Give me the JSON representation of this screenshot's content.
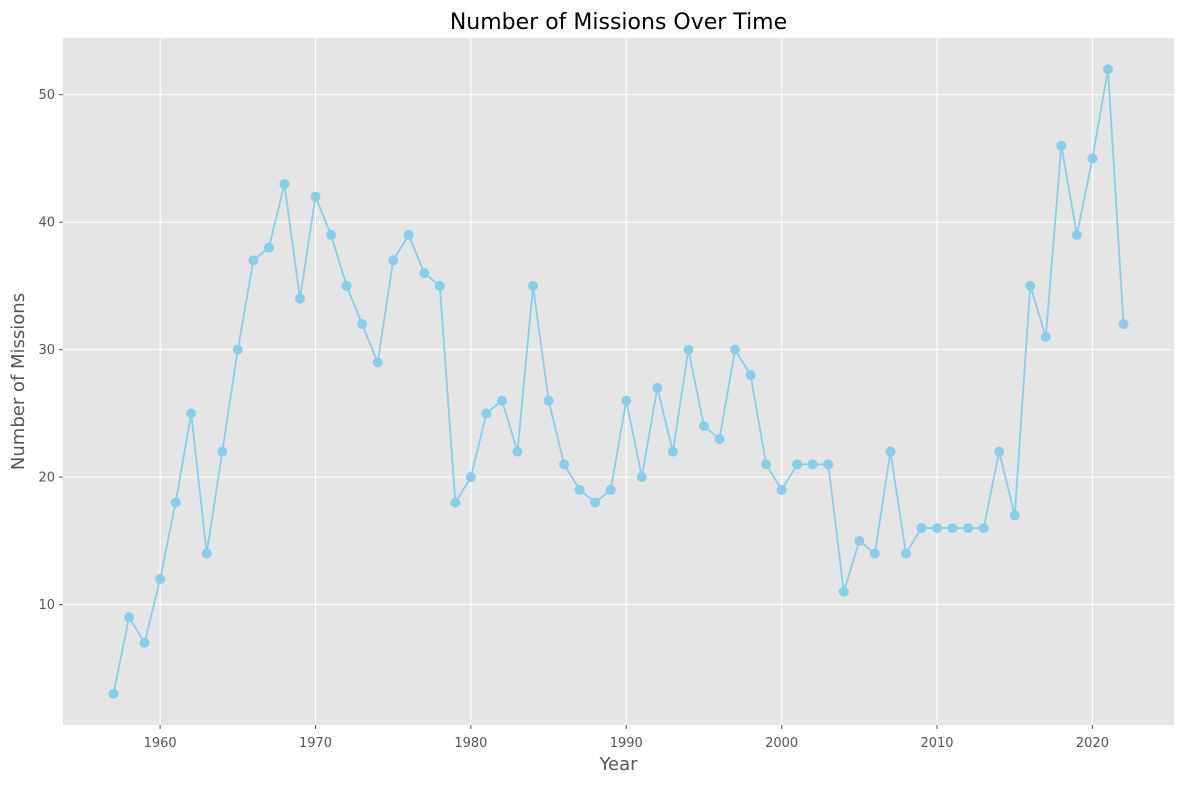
{
  "colors": {
    "plot_background": "#E5E5E5",
    "grid": "#FFFFFF",
    "series": "#87CEEB",
    "tick_text": "#555555",
    "title_text": "#000000"
  },
  "chart_data": {
    "type": "line",
    "title": "Number of Missions Over Time",
    "xlabel": "Year",
    "ylabel": "Number of Missions",
    "xlim": [
      1953.75,
      2025.25
    ],
    "ylim": [
      0.55,
      54.45
    ],
    "xticks": [
      1960,
      1970,
      1980,
      1990,
      2000,
      2010,
      2020
    ],
    "yticks": [
      10,
      20,
      30,
      40,
      50
    ],
    "grid": true,
    "markers": "circle",
    "series": [
      {
        "x": [
          1957,
          1958,
          1959,
          1960,
          1961,
          1962,
          1963,
          1964,
          1965,
          1966,
          1967,
          1968,
          1969,
          1970,
          1971,
          1972,
          1973,
          1974,
          1975,
          1976,
          1977,
          1978,
          1979,
          1980,
          1981,
          1982,
          1983,
          1984,
          1985,
          1986,
          1987,
          1988,
          1989,
          1990,
          1991,
          1992,
          1993,
          1994,
          1995,
          1996,
          1997,
          1998,
          1999,
          2000,
          2001,
          2002,
          2003,
          2004,
          2005,
          2006,
          2007,
          2008,
          2009,
          2010,
          2011,
          2012,
          2013,
          2014,
          2015,
          2016,
          2017,
          2018,
          2019,
          2020,
          2021,
          2022
        ],
        "y": [
          3,
          9,
          7,
          12,
          18,
          25,
          14,
          22,
          30,
          37,
          38,
          43,
          34,
          42,
          39,
          35,
          32,
          29,
          37,
          39,
          36,
          35,
          18,
          20,
          25,
          26,
          22,
          35,
          26,
          21,
          19,
          18,
          19,
          26,
          20,
          27,
          22,
          30,
          24,
          23,
          30,
          28,
          21,
          19,
          21,
          21,
          21,
          11,
          15,
          14,
          22,
          14,
          16,
          16,
          16,
          16,
          16,
          22,
          17,
          35,
          31,
          46,
          39,
          45,
          52,
          32
        ]
      }
    ]
  }
}
